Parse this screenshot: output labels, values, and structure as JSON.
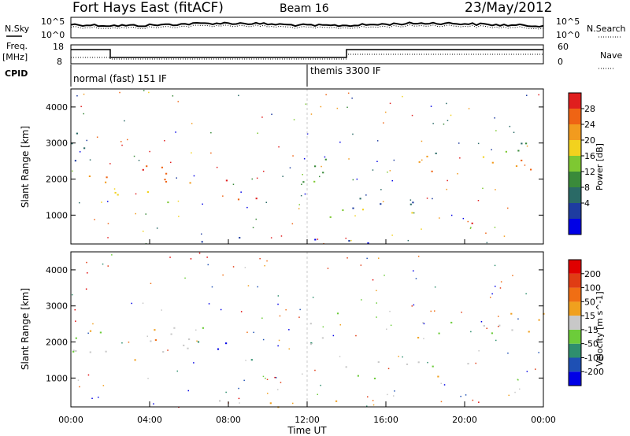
{
  "header": {
    "radar": "Fort Hays East (fitACF)",
    "beam": "Beam 16",
    "date": "23/May/2012"
  },
  "panels": {
    "nsky_label": "N.Sky",
    "nsearch_label": "N.Search",
    "noise_ticks": [
      "10^5",
      "10^0"
    ],
    "freq_label": "Freq.",
    "freq_unit": "[MHz]",
    "freq_ticks": [
      "18",
      "8"
    ],
    "nave_label": "Nave",
    "nave_ticks": [
      "60",
      "0"
    ],
    "cpid_label": "CPID",
    "cpid_segments": [
      "normal (fast) 151 IF",
      "themis 3300 IF"
    ]
  },
  "x_axis": {
    "label": "Time UT",
    "ticks": [
      "00:00",
      "04:00",
      "08:00",
      "12:00",
      "16:00",
      "20:00",
      "00:00"
    ]
  },
  "colors": {
    "power_scale": [
      "#0000e6",
      "#1e3ca0",
      "#2a6a66",
      "#3a8a3a",
      "#7ec832",
      "#f2d21e",
      "#f29b1e",
      "#ef6414",
      "#e01e1e"
    ],
    "velocity_scale": [
      "#0000e6",
      "#1e50b4",
      "#2f8f6e",
      "#6ccc3a",
      "#c8c8c8",
      "#f0a01e",
      "#f06e14",
      "#e03c14",
      "#e00000"
    ]
  },
  "chart_data": [
    {
      "type": "heatmap",
      "title": "",
      "xlabel": "",
      "ylabel": "Slant Range [km]",
      "xlim": [
        0,
        24
      ],
      "ylim": [
        200,
        4500
      ],
      "yticks": [
        "1000",
        "2000",
        "3000",
        "4000"
      ],
      "colorbar_label": "Power [dB]",
      "colorbar_ticks": [
        "28",
        "24",
        "20",
        "16",
        "12",
        "8",
        "4"
      ],
      "regions": [
        {
          "t0": 0.0,
          "t1": 7.0,
          "r0": 1700,
          "r1": 2400,
          "level": 7
        },
        {
          "t0": 0.0,
          "t1": 2.0,
          "r0": 2400,
          "r1": 3400,
          "level": 2
        },
        {
          "t0": 1.8,
          "t1": 6.2,
          "r0": 1200,
          "r1": 1700,
          "level": 5
        },
        {
          "t0": 7.0,
          "t1": 8.5,
          "r0": 1300,
          "r1": 2000,
          "level": 8
        },
        {
          "t0": 8.8,
          "t1": 9.6,
          "r0": 1300,
          "r1": 1900,
          "level": 7
        },
        {
          "t0": 11.7,
          "t1": 14.0,
          "r0": 1800,
          "r1": 2900,
          "level": 3
        },
        {
          "t0": 12.0,
          "t1": 20.5,
          "r0": 1200,
          "r1": 1500,
          "level": 1
        },
        {
          "t0": 13.0,
          "t1": 17.5,
          "r0": 800,
          "r1": 1200,
          "level": 4
        },
        {
          "t0": 17.5,
          "t1": 24.0,
          "r0": 2100,
          "r1": 2700,
          "level": 6
        },
        {
          "t0": 17.5,
          "t1": 24.0,
          "r0": 2700,
          "r1": 3100,
          "level": 3
        },
        {
          "t0": 20.0,
          "t1": 21.0,
          "r0": 650,
          "r1": 950,
          "level": 8
        },
        {
          "t0": 6.0,
          "t1": 16.0,
          "r0": 200,
          "r1": 450,
          "level": 1
        }
      ]
    },
    {
      "type": "heatmap",
      "title": "",
      "xlabel": "Time UT",
      "ylabel": "Slant Range [km]",
      "xlim": [
        0,
        24
      ],
      "ylim": [
        200,
        4500
      ],
      "yticks": [
        "1000",
        "2000",
        "3000",
        "4000"
      ],
      "colorbar_label": "Velocity [m s^-1]",
      "colorbar_ticks": [
        "200",
        "100",
        "50",
        "15",
        "-15",
        "-50",
        "-100",
        "-200"
      ],
      "regions": [
        {
          "t0": 0.0,
          "t1": 7.0,
          "r0": 1700,
          "r1": 2500,
          "level": 4
        },
        {
          "t0": 0.0,
          "t1": 1.2,
          "r0": 1500,
          "r1": 2400,
          "level": 5
        },
        {
          "t0": 3.0,
          "t1": 6.0,
          "r0": 1500,
          "r1": 2400,
          "level": 5
        },
        {
          "t0": 6.0,
          "t1": 7.0,
          "r0": 1600,
          "r1": 2500,
          "level": 3
        },
        {
          "t0": 7.0,
          "t1": 8.5,
          "r0": 1300,
          "r1": 2000,
          "level": 0
        },
        {
          "t0": 8.5,
          "t1": 9.6,
          "r0": 1300,
          "r1": 1900,
          "level": 2
        },
        {
          "t0": 11.7,
          "t1": 14.0,
          "r0": 1800,
          "r1": 2900,
          "level": 3
        },
        {
          "t0": 12.0,
          "t1": 20.5,
          "r0": 1000,
          "r1": 1500,
          "level": 4
        },
        {
          "t0": 17.5,
          "t1": 24.0,
          "r0": 2100,
          "r1": 3000,
          "level": 4
        },
        {
          "t0": 5.0,
          "t1": 14.0,
          "r0": 200,
          "r1": 400,
          "level": 5
        }
      ]
    }
  ]
}
